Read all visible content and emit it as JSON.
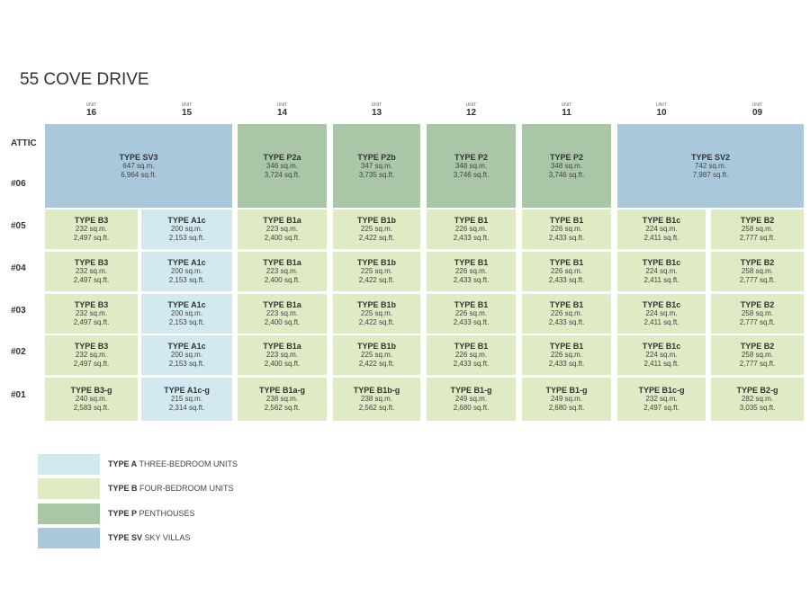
{
  "header": {
    "title": "55 COVE DRIVE"
  },
  "columns": [
    {
      "label": "UNIT",
      "number": "16"
    },
    {
      "label": "UNIT",
      "number": "15"
    },
    {
      "label": "UNIT",
      "number": "14"
    },
    {
      "label": "UNIT",
      "number": "13"
    },
    {
      "label": "UNIT",
      "number": "12"
    },
    {
      "label": "UNIT",
      "number": "11"
    },
    {
      "label": "UNIT",
      "number": "10"
    },
    {
      "label": "UNIT",
      "number": "09"
    }
  ],
  "floors": [
    "ATTIC",
    "#06",
    "#05",
    "#04",
    "#03",
    "#02",
    "#01"
  ],
  "upper": [
    {
      "type": "TYPE SV3",
      "sqm": "647 sq.m.",
      "sqft": "6,964 sq.ft.",
      "color": "#a9c8dc"
    },
    {
      "type": "TYPE P2a",
      "sqm": "346 sq.m.",
      "sqft": "3,724 sq.ft.",
      "color": "#a9c7a6"
    },
    {
      "type": "TYPE P2b",
      "sqm": "347 sq.m.",
      "sqft": "3,735 sq.ft.",
      "color": "#a9c7a6"
    },
    {
      "type": "TYPE P2",
      "sqm": "348 sq.m.",
      "sqft": "3,746 sq.ft.",
      "color": "#a9c7a6"
    },
    {
      "type": "TYPE P2",
      "sqm": "348 sq.m.",
      "sqft": "3,746 sq.ft.",
      "color": "#a9c7a6"
    },
    {
      "type": "TYPE SV2",
      "sqm": "742 sq.m.",
      "sqft": "7,987 sq.ft.",
      "color": "#a9c8dc"
    }
  ],
  "rows": [
    [
      {
        "type": "TYPE B3",
        "sqm": "232 sq.m.",
        "sqft": "2,497 sq.ft.",
        "color": "#deebc4"
      },
      {
        "type": "TYPE A1c",
        "sqm": "200 sq.m.",
        "sqft": "2,153 sq.ft.",
        "color": "#d2eaef"
      },
      {
        "type": "TYPE B1a",
        "sqm": "223 sq.m.",
        "sqft": "2,400 sq.ft.",
        "color": "#deebc4"
      },
      {
        "type": "TYPE B1b",
        "sqm": "225 sq.m.",
        "sqft": "2,422 sq.ft.",
        "color": "#deebc4"
      },
      {
        "type": "TYPE B1",
        "sqm": "226 sq.m.",
        "sqft": "2,433 sq.ft.",
        "color": "#deebc4"
      },
      {
        "type": "TYPE B1",
        "sqm": "226 sq.m.",
        "sqft": "2,433 sq.ft.",
        "color": "#deebc4"
      },
      {
        "type": "TYPE B1c",
        "sqm": "224 sq.m.",
        "sqft": "2,411 sq.ft.",
        "color": "#deebc4"
      },
      {
        "type": "TYPE B2",
        "sqm": "258 sq.m.",
        "sqft": "2,777 sq.ft.",
        "color": "#deebc4"
      }
    ],
    [
      {
        "type": "TYPE B3",
        "sqm": "232 sq.m.",
        "sqft": "2,497 sq.ft.",
        "color": "#deebc4"
      },
      {
        "type": "TYPE A1c",
        "sqm": "200 sq.m.",
        "sqft": "2,153 sq.ft.",
        "color": "#d2eaef"
      },
      {
        "type": "TYPE B1a",
        "sqm": "223 sq.m.",
        "sqft": "2,400 sq.ft.",
        "color": "#deebc4"
      },
      {
        "type": "TYPE B1b",
        "sqm": "225 sq.m.",
        "sqft": "2,422 sq.ft.",
        "color": "#deebc4"
      },
      {
        "type": "TYPE B1",
        "sqm": "226 sq.m.",
        "sqft": "2,433 sq.ft.",
        "color": "#deebc4"
      },
      {
        "type": "TYPE B1",
        "sqm": "226 sq.m.",
        "sqft": "2,433 sq.ft.",
        "color": "#deebc4"
      },
      {
        "type": "TYPE B1c",
        "sqm": "224 sq.m.",
        "sqft": "2,411 sq.ft.",
        "color": "#deebc4"
      },
      {
        "type": "TYPE B2",
        "sqm": "258 sq.m.",
        "sqft": "2,777 sq.ft.",
        "color": "#deebc4"
      }
    ],
    [
      {
        "type": "TYPE B3",
        "sqm": "232 sq.m.",
        "sqft": "2,497 sq.ft.",
        "color": "#deebc4"
      },
      {
        "type": "TYPE A1c",
        "sqm": "200 sq.m.",
        "sqft": "2,153 sq.ft.",
        "color": "#d2eaef"
      },
      {
        "type": "TYPE B1a",
        "sqm": "223 sq.m.",
        "sqft": "2,400 sq.ft.",
        "color": "#deebc4"
      },
      {
        "type": "TYPE B1b",
        "sqm": "225 sq.m.",
        "sqft": "2,422 sq.ft.",
        "color": "#deebc4"
      },
      {
        "type": "TYPE B1",
        "sqm": "226 sq.m.",
        "sqft": "2,433 sq.ft.",
        "color": "#deebc4"
      },
      {
        "type": "TYPE B1",
        "sqm": "226 sq.m.",
        "sqft": "2,433 sq.ft.",
        "color": "#deebc4"
      },
      {
        "type": "TYPE B1c",
        "sqm": "224 sq.m.",
        "sqft": "2,411 sq.ft.",
        "color": "#deebc4"
      },
      {
        "type": "TYPE B2",
        "sqm": "258 sq.m.",
        "sqft": "2,777 sq.ft.",
        "color": "#deebc4"
      }
    ],
    [
      {
        "type": "TYPE B3",
        "sqm": "232 sq.m.",
        "sqft": "2,497 sq.ft.",
        "color": "#deebc4"
      },
      {
        "type": "TYPE A1c",
        "sqm": "200 sq.m.",
        "sqft": "2,153 sq.ft.",
        "color": "#d2eaef"
      },
      {
        "type": "TYPE B1a",
        "sqm": "223 sq.m.",
        "sqft": "2,400 sq.ft.",
        "color": "#deebc4"
      },
      {
        "type": "TYPE B1b",
        "sqm": "225 sq.m.",
        "sqft": "2,422 sq.ft.",
        "color": "#deebc4"
      },
      {
        "type": "TYPE B1",
        "sqm": "226 sq.m.",
        "sqft": "2,433 sq.ft.",
        "color": "#deebc4"
      },
      {
        "type": "TYPE B1",
        "sqm": "226 sq.m.",
        "sqft": "2,433 sq.ft.",
        "color": "#deebc4"
      },
      {
        "type": "TYPE B1c",
        "sqm": "224 sq.m.",
        "sqft": "2,411 sq.ft.",
        "color": "#deebc4"
      },
      {
        "type": "TYPE B2",
        "sqm": "258 sq.m.",
        "sqft": "2,777 sq.ft.",
        "color": "#deebc4"
      }
    ],
    [
      {
        "type": "TYPE B3-g",
        "sqm": "240 sq.m.",
        "sqft": "2,583 sq.ft.",
        "color": "#deebc4"
      },
      {
        "type": "TYPE A1c-g",
        "sqm": "215 sq.m.",
        "sqft": "2,314 sq.ft.",
        "color": "#d2eaef"
      },
      {
        "type": "TYPE B1a-g",
        "sqm": "238 sq.m.",
        "sqft": "2,562 sq.ft.",
        "color": "#deebc4"
      },
      {
        "type": "TYPE B1b-g",
        "sqm": "238 sq.m.",
        "sqft": "2,562 sq.ft.",
        "color": "#deebc4"
      },
      {
        "type": "TYPE B1-g",
        "sqm": "249 sq.m.",
        "sqft": "2,680 sq.ft.",
        "color": "#deebc4"
      },
      {
        "type": "TYPE B1-g",
        "sqm": "249 sq.m.",
        "sqft": "2,680 sq.ft.",
        "color": "#deebc4"
      },
      {
        "type": "TYPE B1c-g",
        "sqm": "232 sq.m.",
        "sqft": "2,497 sq.ft.",
        "color": "#deebc4"
      },
      {
        "type": "TYPE B2-g",
        "sqm": "282 sq.m.",
        "sqft": "3,035 sq.ft.",
        "color": "#deebc4"
      }
    ]
  ],
  "legend": [
    {
      "type": "TYPE A",
      "description": "THREE-BEDROOM UNITS",
      "color": "#d2eaef"
    },
    {
      "type": "TYPE B",
      "description": "FOUR-BEDROOM UNITS",
      "color": "#deebc4"
    },
    {
      "type": "TYPE P",
      "description": "PENTHOUSES",
      "color": "#a9c7a6"
    },
    {
      "type": "TYPE SV",
      "description": "SKY VILLAS",
      "color": "#a9c8dc"
    }
  ]
}
